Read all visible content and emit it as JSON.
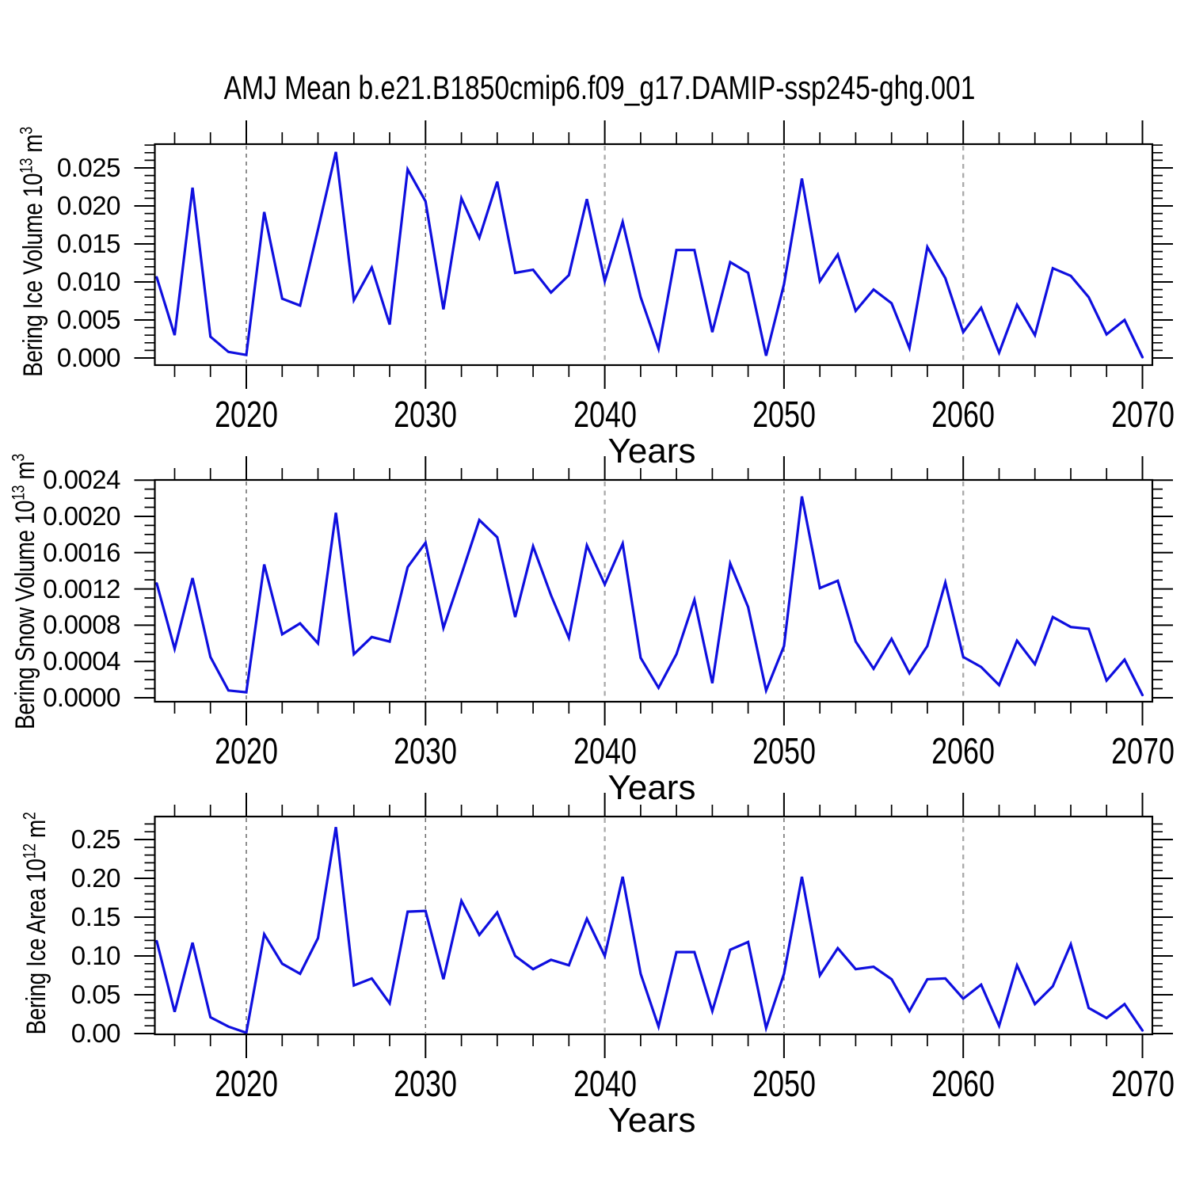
{
  "title": "AMJ Mean b.e21.B1850cmip6.f09_g17.DAMIP-ssp245-ghg.001",
  "style": {
    "background": "#ffffff",
    "axis_color": "#000000",
    "line_color": "#0f0fdf",
    "grid_color": "#6b6b6b",
    "grid_color_light": "#a9a9a9"
  },
  "x_axis": {
    "label": "Years",
    "range": [
      2015,
      2070
    ],
    "major_tick_years": [
      2020,
      2030,
      2040,
      2050,
      2060,
      2070
    ],
    "major_tick_labels": [
      "2020",
      "2030",
      "2040",
      "2050",
      "2060",
      "2070"
    ],
    "minor_tick_step_years": 2,
    "grid_years": [
      2020,
      2030,
      2040,
      2050,
      2060
    ],
    "light_grid_years": [
      2040,
      2060
    ]
  },
  "years": [
    2015,
    2016,
    2017,
    2018,
    2019,
    2020,
    2021,
    2022,
    2023,
    2024,
    2025,
    2026,
    2027,
    2028,
    2029,
    2030,
    2031,
    2032,
    2033,
    2034,
    2035,
    2036,
    2037,
    2038,
    2039,
    2040,
    2041,
    2042,
    2043,
    2044,
    2045,
    2046,
    2047,
    2048,
    2049,
    2050,
    2051,
    2052,
    2053,
    2054,
    2055,
    2056,
    2057,
    2058,
    2059,
    2060,
    2061,
    2062,
    2063,
    2064,
    2065,
    2066,
    2067,
    2068,
    2069,
    2070
  ],
  "chart_data": [
    {
      "type": "line",
      "name": "bering-ice-volume",
      "ylabel_parts": {
        "pre": "Bering Ice Volume 10",
        "sup1": "13",
        "mid": " m",
        "sup2": "3"
      },
      "ylim": [
        0.0,
        0.025
      ],
      "ytick_values": [
        0.0,
        0.005,
        0.01,
        0.015,
        0.02,
        0.025
      ],
      "ytick_labels": [
        "0.000",
        "0.005",
        "0.010",
        "0.015",
        "0.020",
        "0.025"
      ],
      "y_minor_step": 0.001,
      "grid": "vertical-dashed",
      "legend": "none",
      "values": [
        0.0106,
        0.003,
        0.0224,
        0.0028,
        0.0008,
        0.0004,
        0.0192,
        0.0078,
        0.0069,
        0.0169,
        0.0271,
        0.0076,
        0.0119,
        0.0044,
        0.0248,
        0.0206,
        0.0064,
        0.021,
        0.0158,
        0.0232,
        0.0112,
        0.0116,
        0.0086,
        0.0109,
        0.0209,
        0.0101,
        0.0179,
        0.008,
        0.0012,
        0.0142,
        0.0142,
        0.0034,
        0.0126,
        0.0112,
        0.0003,
        0.0097,
        0.0236,
        0.0101,
        0.0136,
        0.0062,
        0.009,
        0.0072,
        0.0013,
        0.0146,
        0.0105,
        0.0034,
        0.0066,
        0.0007,
        0.007,
        0.003,
        0.0118,
        0.0108,
        0.008,
        0.0031,
        0.005,
        0.0001
      ]
    },
    {
      "type": "line",
      "name": "bering-snow-volume",
      "ylabel_parts": {
        "pre": "Bering Snow Volume 10",
        "sup1": "13",
        "mid": " m",
        "sup2": "3"
      },
      "ylim": [
        0.0,
        0.0024
      ],
      "ytick_values": [
        0.0,
        0.0004,
        0.0008,
        0.0012,
        0.0016,
        0.002,
        0.0024
      ],
      "ytick_labels": [
        "0.0000",
        "0.0004",
        "0.0008",
        "0.0012",
        "0.0016",
        "0.0020",
        "0.0024"
      ],
      "y_minor_step": 0.0001,
      "grid": "vertical-dashed",
      "legend": "none",
      "values": [
        0.00126,
        0.00054,
        0.00132,
        0.00045,
        8e-05,
        6e-05,
        0.00147,
        0.0007,
        0.00082,
        0.0006,
        0.00204,
        0.00048,
        0.00067,
        0.00062,
        0.00144,
        0.00171,
        0.00077,
        0.00136,
        0.00196,
        0.00177,
        0.00089,
        0.00167,
        0.00113,
        0.00066,
        0.00168,
        0.00125,
        0.0017,
        0.00044,
        0.00011,
        0.00048,
        0.00108,
        0.00016,
        0.00148,
        0.001,
        8e-05,
        0.00057,
        0.00222,
        0.00121,
        0.00129,
        0.00062,
        0.00032,
        0.00065,
        0.00027,
        0.00057,
        0.00127,
        0.00045,
        0.00034,
        0.00014,
        0.00063,
        0.00037,
        0.00089,
        0.00078,
        0.00076,
        0.00019,
        0.00042,
        3e-05
      ]
    },
    {
      "type": "line",
      "name": "bering-ice-area",
      "ylabel_parts": {
        "pre": "Bering Ice Area 10",
        "sup1": "12",
        "mid": " m",
        "sup2": "2"
      },
      "ylim": [
        0.0,
        0.25
      ],
      "ytick_values": [
        0.0,
        0.05,
        0.1,
        0.15,
        0.2,
        0.25
      ],
      "ytick_labels": [
        "0.00",
        "0.05",
        "0.10",
        "0.15",
        "0.20",
        "0.25"
      ],
      "y_minor_step": 0.01,
      "grid": "vertical-dashed",
      "legend": "none",
      "values": [
        0.119,
        0.028,
        0.117,
        0.021,
        0.009,
        0.001,
        0.128,
        0.09,
        0.077,
        0.123,
        0.266,
        0.062,
        0.071,
        0.039,
        0.157,
        0.158,
        0.07,
        0.171,
        0.127,
        0.156,
        0.1,
        0.083,
        0.095,
        0.088,
        0.148,
        0.1,
        0.202,
        0.077,
        0.009,
        0.105,
        0.105,
        0.029,
        0.108,
        0.118,
        0.007,
        0.077,
        0.202,
        0.075,
        0.11,
        0.083,
        0.086,
        0.07,
        0.029,
        0.07,
        0.071,
        0.045,
        0.063,
        0.01,
        0.088,
        0.038,
        0.061,
        0.115,
        0.033,
        0.02,
        0.038,
        0.004
      ]
    }
  ]
}
